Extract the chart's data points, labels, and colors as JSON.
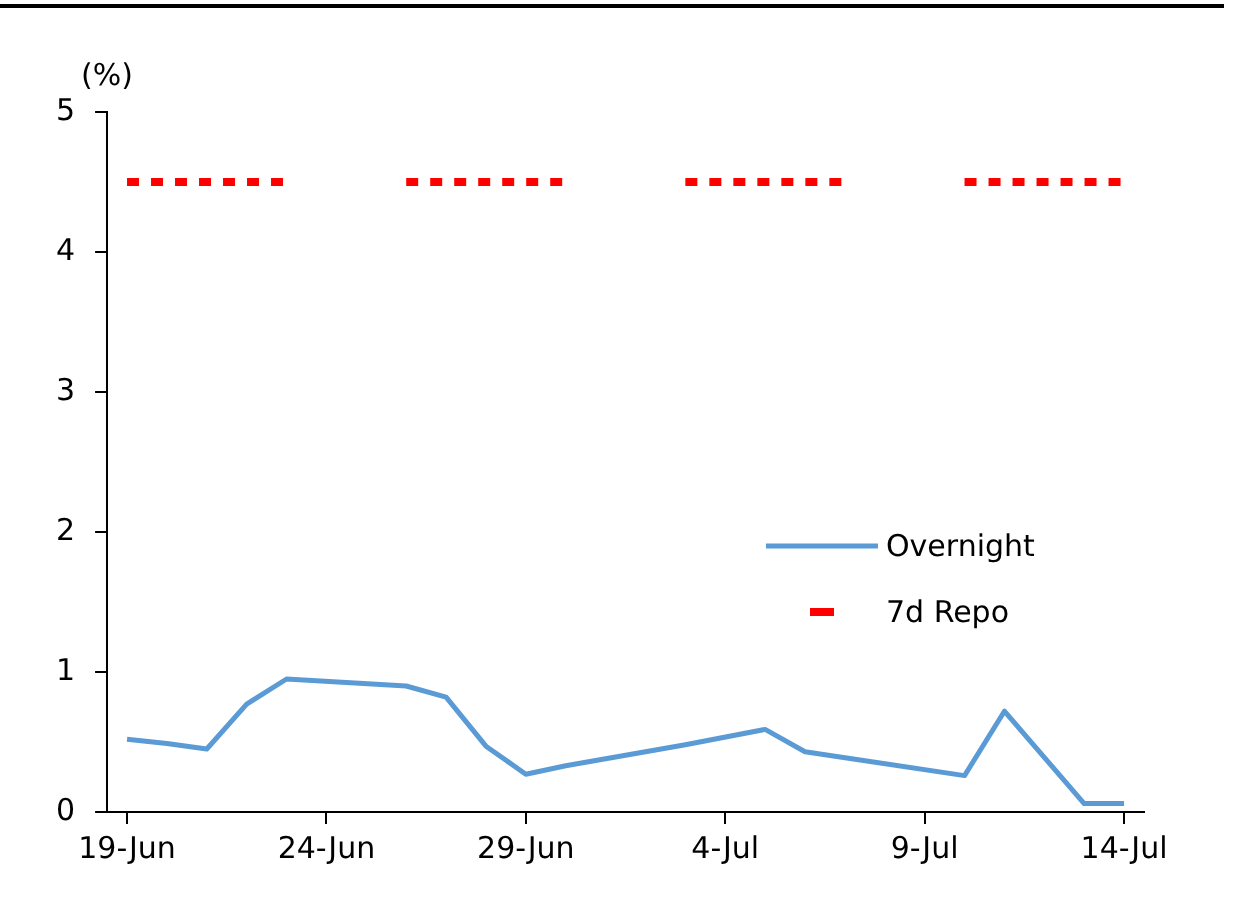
{
  "chart_data": {
    "type": "line",
    "ylabel": "(%)",
    "categories": [
      "19-Jun",
      null,
      null,
      null,
      null,
      "24-Jun",
      null,
      null,
      null,
      null,
      "29-Jun",
      null,
      null,
      null,
      null,
      "4-Jul",
      null,
      null,
      null,
      null,
      "9-Jul",
      null,
      null,
      null,
      null,
      "14-Jul"
    ],
    "series": [
      {
        "name": "Overnight",
        "color": "#5b9bd5",
        "line_style": "solid",
        "values": [
          0.52,
          0.49,
          0.45,
          0.77,
          0.95,
          null,
          null,
          0.9,
          0.82,
          0.47,
          0.27,
          0.33,
          null,
          null,
          0.48,
          null,
          0.59,
          0.43,
          null,
          null,
          null,
          0.26,
          0.72,
          null,
          0.06,
          0.06
        ]
      },
      {
        "name": "7d Repo",
        "color": "#ff0000",
        "line_style": "dashed",
        "values": [
          4.5,
          4.5,
          4.5,
          4.5,
          4.5,
          null,
          null,
          4.5,
          4.5,
          4.5,
          4.5,
          4.5,
          null,
          null,
          4.5,
          4.5,
          4.5,
          4.5,
          4.5,
          null,
          null,
          4.5,
          4.5,
          4.5,
          4.5,
          4.5
        ]
      }
    ],
    "ylim": [
      0,
      5
    ],
    "yticks": [
      0,
      1,
      2,
      3,
      4,
      5
    ],
    "grid": false,
    "legend": "center right",
    "marker": "none"
  }
}
